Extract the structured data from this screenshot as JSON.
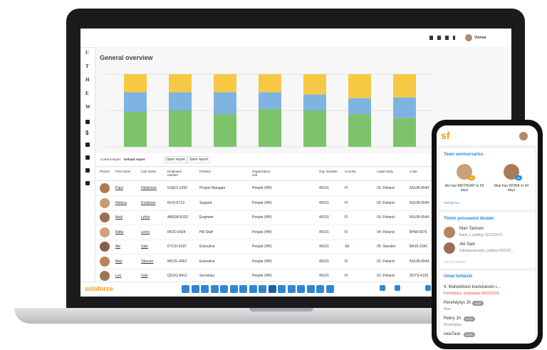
{
  "app": {
    "page_title": "General overview",
    "user": "Vienna",
    "sidebar_letters": [
      "C",
      "T",
      "H",
      "E",
      "W"
    ],
    "sidebar_currency": "$",
    "report_bar": {
      "current_label": "Current report",
      "current_value": "Default report",
      "open": "Open report",
      "save": "Save report"
    },
    "overview_chart": {
      "type": "bar",
      "stacked": true,
      "ylim": [
        0,
        100
      ],
      "series": [
        {
          "color": "#7dc36b",
          "values": [
            48,
            50,
            45,
            52,
            50,
            45,
            40
          ]
        },
        {
          "color": "#7fb3e2",
          "values": [
            27,
            25,
            30,
            23,
            22,
            22,
            28
          ]
        },
        {
          "color": "#f6c945",
          "values": [
            25,
            25,
            25,
            25,
            28,
            33,
            32
          ]
        }
      ]
    },
    "table": {
      "columns": [
        "Picture",
        "First name",
        "Last name",
        "Employee number",
        "Position",
        "Organization unit",
        "Org. Number",
        "Country",
        "Legal entity",
        "Code"
      ],
      "rows": [
        [
          "Paivi",
          "Heikkinen",
          "GQEO-1290",
          "Project Manager",
          "People (HR)",
          "40101",
          "FI",
          "03. Finland",
          "NUUN-6544"
        ],
        [
          "Helena",
          "Koskinen",
          "KFXI-6713",
          "Support",
          "People (HR)",
          "40101",
          "FI",
          "03: Finland",
          "NUUN-6544"
        ],
        [
          "Antti",
          "Lehto",
          "AMQW-8162",
          "Engineer",
          "People (HR)",
          "40101",
          "FI",
          "03: Finland",
          "NUUN-6544"
        ],
        [
          "Riitta",
          "Leino",
          "IROO-5424",
          "HR Staff",
          "People (HR)",
          "40101",
          "FI",
          "04: Finland",
          "BHW-6676"
        ],
        [
          "Aki",
          "Salo",
          "DYCD-4197",
          "Executive",
          "People (HR)",
          "40101",
          "SE",
          "05: Sweden",
          "BAJS-2341"
        ],
        [
          "Mari",
          "Talonen",
          "MGTE-4662",
          "Executive",
          "People (HR)",
          "40101",
          "FI",
          "03: Finland",
          "NUUN-6544"
        ],
        [
          "Leo",
          "Valo",
          "QGXG-8412",
          "Secretary",
          "People (HR)",
          "40101",
          "FI",
          "01: Finland",
          "ZDYS-4136"
        ]
      ]
    },
    "logo": "solaforce"
  },
  "phone": {
    "logo": "sf",
    "anniversaries": {
      "title": "Team anniversaries",
      "items": [
        {
          "text": "Aki has BIRTHDAY in 59 days",
          "badge": "59"
        },
        {
          "text": "Mari has WORK in 64 days",
          "badge": "64"
        }
      ],
      "link": "SHOW ALL"
    },
    "absences": {
      "title": "Tiimin poissaolot tänään",
      "items": [
        {
          "name": "Mari Talonen",
          "detail": "Bank 1, päättyy 02/12/2021"
        },
        {
          "name": "Aki Salo",
          "detail": "Sairaspoissaolo, päättyy 02/03/2..."
        }
      ],
      "link": "NÄYTÄ KAIKKI"
    },
    "tasks": {
      "title": "Omat tehtävät",
      "items": [
        {
          "title": "4. Mahdollisiin koulutuksiin i...",
          "detail": "Perehdytys, määräaika 04/13/2020"
        },
        {
          "title": "Perehdytys 2h",
          "badge": "UUSI",
          "detail": "Muu"
        },
        {
          "title": "Rekry 1h",
          "badge": "UUSI",
          "detail": "Perehdytys"
        },
        {
          "title": "newTask",
          "badge": "UUSI"
        }
      ]
    }
  }
}
